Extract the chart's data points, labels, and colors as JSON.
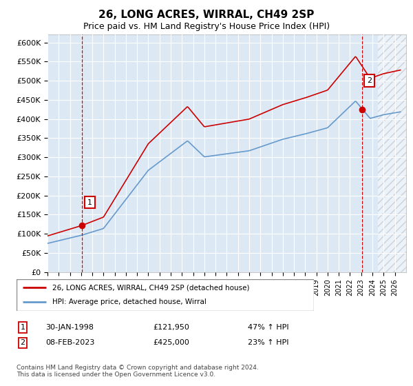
{
  "title": "26, LONG ACRES, WIRRAL, CH49 2SP",
  "subtitle": "Price paid vs. HM Land Registry's House Price Index (HPI)",
  "legend_entry1": "26, LONG ACRES, WIRRAL, CH49 2SP (detached house)",
  "legend_entry2": "HPI: Average price, detached house, Wirral",
  "annotation1_date": "30-JAN-1998",
  "annotation1_price": "£121,950",
  "annotation1_hpi": "47% ↑ HPI",
  "annotation2_date": "08-FEB-2023",
  "annotation2_price": "£425,000",
  "annotation2_hpi": "23% ↑ HPI",
  "footer": "Contains HM Land Registry data © Crown copyright and database right 2024.\nThis data is licensed under the Open Government Licence v3.0.",
  "hpi_color": "#6699cc",
  "price_color": "#cc0000",
  "plot_bg": "#dce9f5",
  "ylim": [
    0,
    620000
  ],
  "ytick_vals": [
    0,
    50000,
    100000,
    150000,
    200000,
    250000,
    300000,
    350000,
    400000,
    450000,
    500000,
    550000,
    600000
  ],
  "ytick_labels": [
    "£0",
    "£50K",
    "£100K",
    "£150K",
    "£200K",
    "£250K",
    "£300K",
    "£350K",
    "£400K",
    "£450K",
    "£500K",
    "£550K",
    "£600K"
  ],
  "sale1_year": 1998.08,
  "sale1_price": 121950,
  "sale2_year": 2023.1,
  "sale2_price": 425000
}
